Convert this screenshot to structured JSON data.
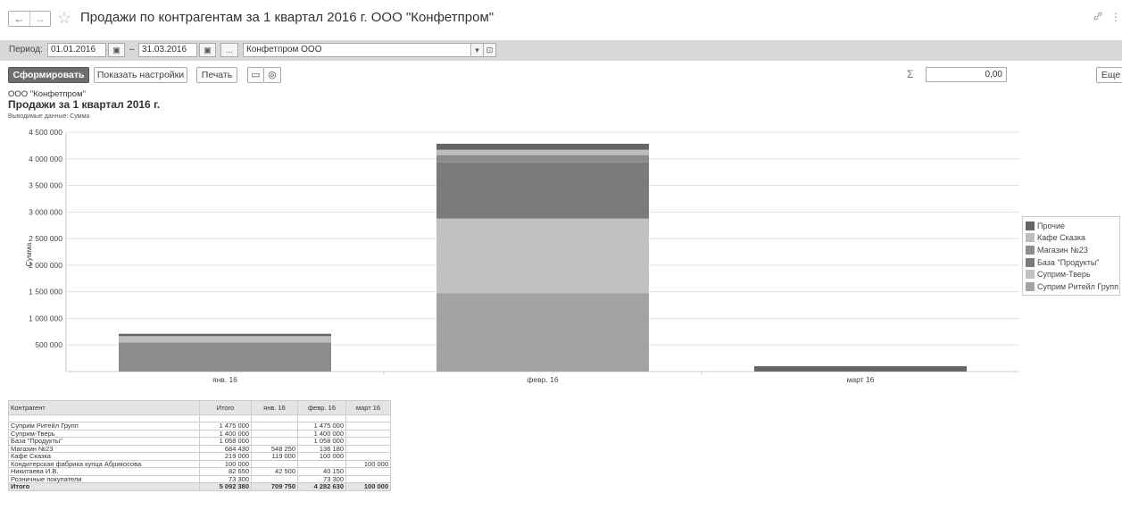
{
  "window": {
    "title": "Продажи по контрагентам за 1 квартал 2016 г. ООО \"Конфетпром\"",
    "back_icon": "←",
    "forward_icon": "→",
    "star_icon": "☆",
    "link_icon": "🔗",
    "more_icon": "⋮"
  },
  "period": {
    "label": "Период:",
    "from": "01.01.2016",
    "to": "31.03.2016",
    "dash": "–",
    "calendar_icon": "▣",
    "choose_label": "...",
    "organization": "Конфетпром ООО",
    "dropdown_icon": "▾",
    "open_icon": "⊡"
  },
  "toolbar": {
    "generate_label": "Сформировать",
    "settings_label": "Показать настройки",
    "print_label": "Печать",
    "save_icon": "▭",
    "info_icon": "◎",
    "sigma": "Σ",
    "sum_value": "0,00",
    "more_label": "Еще"
  },
  "report": {
    "organization": "ООО \"Конфетпром\"",
    "title": "Продажи за 1 квартал 2016 г.",
    "subtitle": "Выводимые данные:  Сумма"
  },
  "chart_data": {
    "type": "bar",
    "stacked": true,
    "categories": [
      "янв. 16",
      "февр. 16",
      "март 16"
    ],
    "ylabel": "Сумма",
    "ylim": [
      0,
      4500000
    ],
    "yticks": [
      {
        "v": 500000,
        "label": "500 000"
      },
      {
        "v": 1000000,
        "label": "1 000 000"
      },
      {
        "v": 1500000,
        "label": "1 500 000"
      },
      {
        "v": 2000000,
        "label": "2 000 000"
      },
      {
        "v": 2500000,
        "label": "2 500 000"
      },
      {
        "v": 3000000,
        "label": "3 000 000"
      },
      {
        "v": 3500000,
        "label": "3 500 000"
      },
      {
        "v": 4000000,
        "label": "4 000 000"
      },
      {
        "v": 4500000,
        "label": "4 500 000"
      }
    ],
    "grid": true,
    "legend_position": "right",
    "series": [
      {
        "name": "Суприм Ритейл Групп",
        "color": "#a3a3a3",
        "values": [
          0,
          1475000,
          0
        ]
      },
      {
        "name": "Суприм-Тверь",
        "color": "#c2c2c2",
        "values": [
          0,
          1400000,
          0
        ]
      },
      {
        "name": "База \"Продукты\"",
        "color": "#7b7b7b",
        "values": [
          0,
          1058000,
          0
        ]
      },
      {
        "name": "Магазин №23",
        "color": "#8c8c8c",
        "values": [
          548250,
          136180,
          0
        ]
      },
      {
        "name": "Кафе Сказка",
        "color": "#bdbdbd",
        "values": [
          119000,
          100000,
          0
        ]
      },
      {
        "name": "Прочие",
        "color": "#666666",
        "values": [
          42500,
          113450,
          100000
        ]
      }
    ]
  },
  "table": {
    "headers": [
      "Контрагент",
      "Итого",
      "янв. 16",
      "февр. 16",
      "март 16"
    ],
    "rows": [
      [
        "Суприм Ритейл Групп",
        "1 475 000",
        "",
        "1 475 000",
        ""
      ],
      [
        "Суприм-Тверь",
        "1 400 000",
        "",
        "1 400 000",
        ""
      ],
      [
        "База \"Продукты\"",
        "1 058 000",
        "",
        "1 058 000",
        ""
      ],
      [
        "Магазин №23",
        "684 430",
        "548 250",
        "136 180",
        ""
      ],
      [
        "Кафе Сказка",
        "219 000",
        "119 000",
        "100 000",
        ""
      ],
      [
        "Кондитерская фабрика купца Абрикосова",
        "100 000",
        "",
        "",
        "100 000"
      ],
      [
        "Никитаева И.В.",
        "82 650",
        "42 500",
        "40 150",
        ""
      ],
      [
        "Розничные покупатели",
        "73 300",
        "",
        "73 300",
        ""
      ]
    ],
    "total": [
      "Итого",
      "5 092 380",
      "709 750",
      "4 282 630",
      "100 000"
    ]
  }
}
